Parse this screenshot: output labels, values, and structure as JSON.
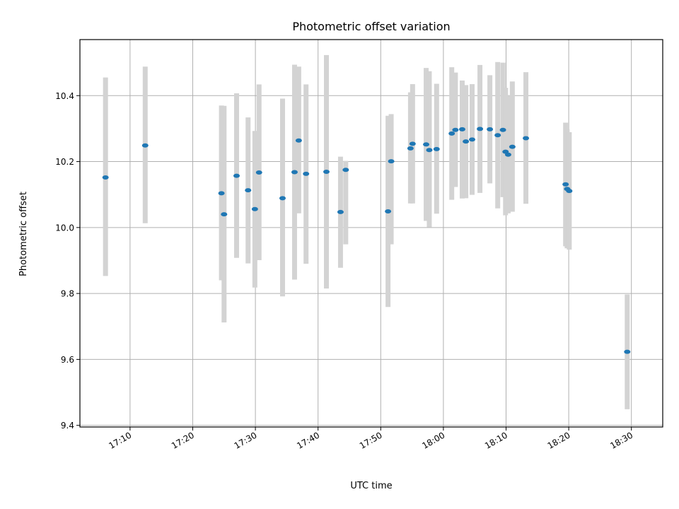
{
  "chart_data": {
    "type": "scatter",
    "title": "Photometric offset variation",
    "xlabel": "UTC time",
    "ylabel": "Photometric offset",
    "xlim": [
      "17:02",
      "18:35"
    ],
    "ylim": [
      9.395,
      10.57
    ],
    "x_ticks": [
      "17:10",
      "17:20",
      "17:30",
      "17:40",
      "17:50",
      "18:00",
      "18:10",
      "18:20",
      "18:30"
    ],
    "y_ticks": [
      "9.4",
      "9.6",
      "9.8",
      "10.0",
      "10.2",
      "10.4"
    ],
    "grid": true,
    "colors": {
      "point": "#1f77b4",
      "errorbar": "#d3d3d3",
      "grid": "#b0b0b0"
    },
    "points": [
      {
        "t": "17:06:05",
        "y": 10.152,
        "lo": 9.853,
        "hi": 10.455
      },
      {
        "t": "17:12:25",
        "y": 10.249,
        "lo": 10.013,
        "hi": 10.488
      },
      {
        "t": "17:24:35",
        "y": 10.104,
        "lo": 9.84,
        "hi": 10.37
      },
      {
        "t": "17:25:00",
        "y": 10.04,
        "lo": 9.712,
        "hi": 10.369
      },
      {
        "t": "17:27:00",
        "y": 10.157,
        "lo": 9.908,
        "hi": 10.407
      },
      {
        "t": "17:28:50",
        "y": 10.113,
        "lo": 9.891,
        "hi": 10.334
      },
      {
        "t": "17:29:55",
        "y": 10.056,
        "lo": 9.818,
        "hi": 10.293
      },
      {
        "t": "17:30:35",
        "y": 10.167,
        "lo": 9.901,
        "hi": 10.434
      },
      {
        "t": "17:34:20",
        "y": 10.089,
        "lo": 9.791,
        "hi": 10.391
      },
      {
        "t": "17:36:15",
        "y": 10.168,
        "lo": 9.842,
        "hi": 10.494
      },
      {
        "t": "17:36:55",
        "y": 10.264,
        "lo": 10.043,
        "hi": 10.488
      },
      {
        "t": "17:38:05",
        "y": 10.163,
        "lo": 9.89,
        "hi": 10.434
      },
      {
        "t": "17:41:20",
        "y": 10.169,
        "lo": 9.815,
        "hi": 10.523
      },
      {
        "t": "17:43:35",
        "y": 10.047,
        "lo": 9.878,
        "hi": 10.215
      },
      {
        "t": "17:44:25",
        "y": 10.175,
        "lo": 9.949,
        "hi": 10.202
      },
      {
        "t": "17:51:10",
        "y": 10.049,
        "lo": 9.759,
        "hi": 10.339
      },
      {
        "t": "17:51:40",
        "y": 10.201,
        "lo": 9.949,
        "hi": 10.344
      },
      {
        "t": "17:54:45",
        "y": 10.24,
        "lo": 10.073,
        "hi": 10.41
      },
      {
        "t": "17:55:05",
        "y": 10.254,
        "lo": 10.073,
        "hi": 10.435
      },
      {
        "t": "17:57:15",
        "y": 10.252,
        "lo": 10.02,
        "hi": 10.484
      },
      {
        "t": "17:57:45",
        "y": 10.235,
        "lo": 10.001,
        "hi": 10.474
      },
      {
        "t": "17:58:55",
        "y": 10.238,
        "lo": 10.042,
        "hi": 10.436
      },
      {
        "t": "18:01:20",
        "y": 10.285,
        "lo": 10.084,
        "hi": 10.486
      },
      {
        "t": "18:01:55",
        "y": 10.296,
        "lo": 10.123,
        "hi": 10.47
      },
      {
        "t": "18:03:00",
        "y": 10.298,
        "lo": 10.088,
        "hi": 10.446
      },
      {
        "t": "18:03:35",
        "y": 10.261,
        "lo": 10.089,
        "hi": 10.432
      },
      {
        "t": "18:04:35",
        "y": 10.267,
        "lo": 10.099,
        "hi": 10.435
      },
      {
        "t": "18:05:50",
        "y": 10.299,
        "lo": 10.105,
        "hi": 10.493
      },
      {
        "t": "18:07:25",
        "y": 10.298,
        "lo": 10.134,
        "hi": 10.462
      },
      {
        "t": "18:08:40",
        "y": 10.28,
        "lo": 10.058,
        "hi": 10.502
      },
      {
        "t": "18:09:30",
        "y": 10.296,
        "lo": 10.092,
        "hi": 10.5
      },
      {
        "t": "18:09:55",
        "y": 10.23,
        "lo": 10.037,
        "hi": 10.424
      },
      {
        "t": "18:10:20",
        "y": 10.221,
        "lo": 10.043,
        "hi": 10.4
      },
      {
        "t": "18:11:00",
        "y": 10.245,
        "lo": 10.048,
        "hi": 10.443
      },
      {
        "t": "18:13:10",
        "y": 10.271,
        "lo": 10.072,
        "hi": 10.471
      },
      {
        "t": "18:19:30",
        "y": 10.131,
        "lo": 9.943,
        "hi": 10.318
      },
      {
        "t": "18:19:45",
        "y": 10.117,
        "lo": 9.937,
        "hi": 10.298
      },
      {
        "t": "18:20:05",
        "y": 10.111,
        "lo": 9.933,
        "hi": 10.289
      },
      {
        "t": "18:29:20",
        "y": 9.623,
        "lo": 9.449,
        "hi": 9.797
      }
    ]
  }
}
